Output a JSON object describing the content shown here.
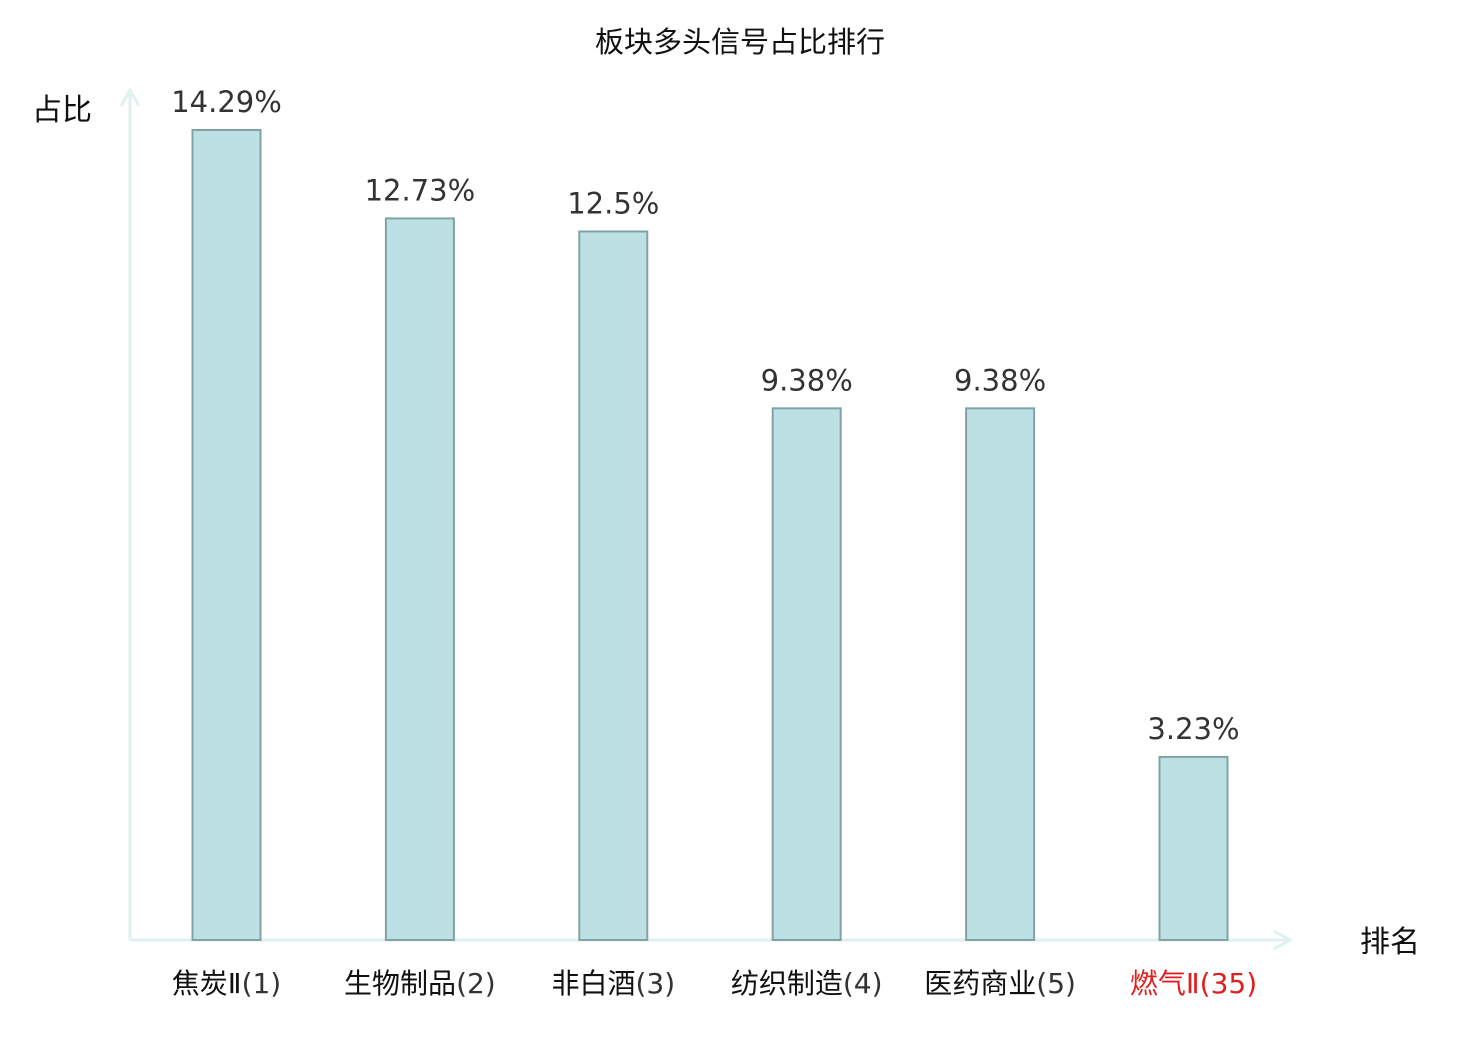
{
  "chart_data": {
    "type": "bar",
    "title": "板块多头信号占比排行",
    "ylabel": "占比",
    "xlabel": "排名",
    "categories": [
      {
        "name": "焦炭Ⅱ",
        "rank": "(1)",
        "highlight": false
      },
      {
        "name": "生物制品",
        "rank": "(2)",
        "highlight": false
      },
      {
        "name": "非白酒",
        "rank": "(3)",
        "highlight": false
      },
      {
        "name": "纺织制造",
        "rank": "(4)",
        "highlight": false
      },
      {
        "name": "医药商业",
        "rank": "(5)",
        "highlight": false
      },
      {
        "name": "燃气Ⅱ",
        "rank": "(35)",
        "highlight": true
      }
    ],
    "values": [
      14.29,
      12.73,
      12.5,
      9.38,
      9.38,
      3.23
    ],
    "value_labels": [
      "14.29%",
      "12.73%",
      "12.5%",
      "9.38%",
      "9.38%",
      "3.23%"
    ],
    "ylim": [
      0,
      14.29
    ],
    "grid": false,
    "legend": "none"
  },
  "colors": {
    "bar_fill": "#bce0e3",
    "bar_stroke": "#82a3a6",
    "axis": "#dff2ef",
    "highlight_text": "#e02020",
    "normal_text": "#111111",
    "rank_text": "#333333"
  }
}
